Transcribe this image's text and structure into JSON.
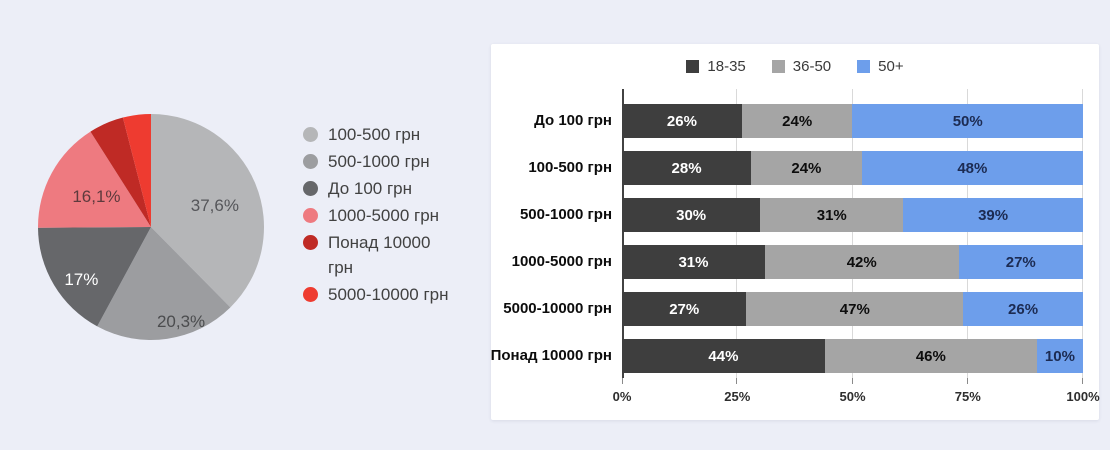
{
  "page": {
    "background": "#eceef7",
    "card_background": "#ffffff"
  },
  "chart_data": [
    {
      "id": "spending-share-pie",
      "type": "pie",
      "legend_position": "right",
      "slices": [
        {
          "label": "100-500 грн",
          "value": 37.6,
          "display": "37,6%",
          "color": "#b5b6b8",
          "label_color": "#55565a"
        },
        {
          "label": "500-1000 грн",
          "value": 20.3,
          "display": "20,3%",
          "color": "#9c9da0",
          "label_color": "#4b4c4e"
        },
        {
          "label": "До 100 грн",
          "value": 17,
          "display": "17%",
          "color": "#66676a",
          "label_color": "#ffffff"
        },
        {
          "label": "1000-5000 грн",
          "value": 16.1,
          "display": "16,1%",
          "color": "#ee7a80",
          "label_color": "#5e3a3d"
        },
        {
          "label": "Понад 10000 грн",
          "value": 5,
          "display": "",
          "color": "#bf2a25",
          "label_color": ""
        },
        {
          "label": "5000-10000 грн",
          "value": 4,
          "display": "",
          "color": "#ee3b30",
          "label_color": ""
        }
      ]
    },
    {
      "id": "age-breakdown-stacked-bars",
      "type": "bar",
      "orientation": "horizontal-stacked",
      "legend_position": "top",
      "value_suffix": "%",
      "categories": [
        "До 100 грн",
        "100-500 грн",
        "500-1000 грн",
        "1000-5000 грн",
        "5000-10000 грн",
        "Понад 10000 грн"
      ],
      "series": [
        {
          "name": "18-35",
          "color": "#3e3e3e",
          "label_color": "#ffffff",
          "values": [
            26,
            28,
            30,
            31,
            27,
            44
          ]
        },
        {
          "name": "36-50",
          "color": "#a5a5a5",
          "label_color": "#0d0d0d",
          "values": [
            24,
            24,
            31,
            42,
            47,
            46
          ]
        },
        {
          "name": "50+",
          "color": "#6d9eeb",
          "label_color": "#1c2b52",
          "values": [
            50,
            48,
            39,
            27,
            26,
            10
          ]
        }
      ],
      "x_axis": {
        "ticks": [
          "0%",
          "25%",
          "50%",
          "75%",
          "100%"
        ],
        "min": 0,
        "max": 100,
        "gridlines": true
      }
    }
  ]
}
